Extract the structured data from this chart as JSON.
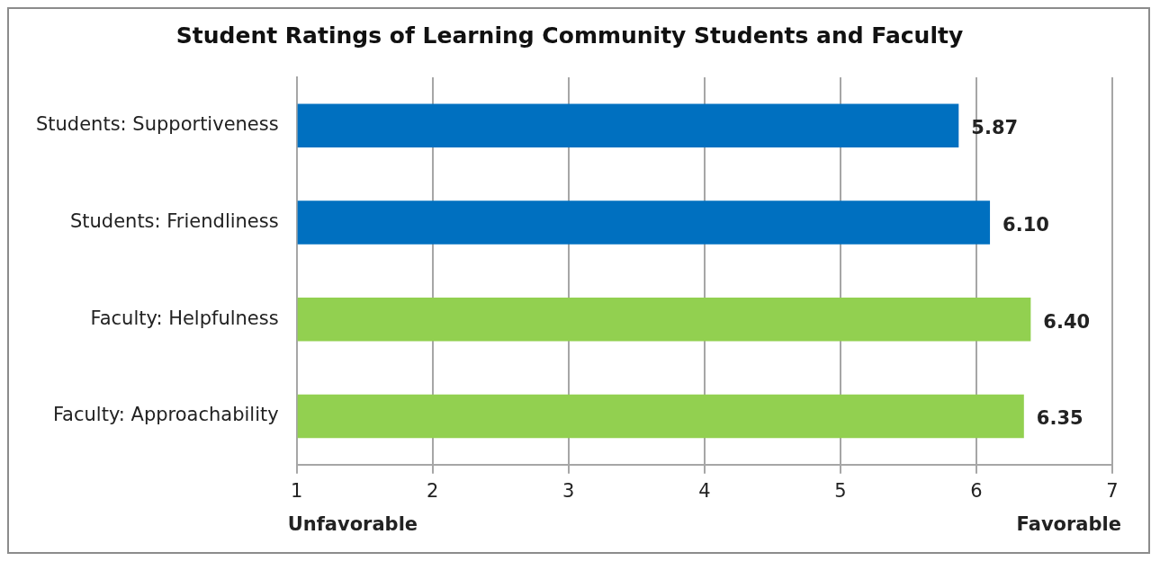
{
  "chart_data": {
    "type": "bar",
    "orientation": "horizontal",
    "title": "Student Ratings of Learning Community Students and Faculty",
    "categories": [
      "Students: Supportiveness",
      "Students: Friendliness",
      "Faculty: Helpfulness",
      "Faculty: Approachability"
    ],
    "values": [
      5.87,
      6.1,
      6.4,
      6.35
    ],
    "colors": [
      "#0070c0",
      "#0070c0",
      "#92d050",
      "#92d050"
    ],
    "value_labels": [
      "5.87",
      "6.10",
      "6.40",
      "6.35"
    ],
    "xlim": [
      1,
      7
    ],
    "xticks": [
      1,
      2,
      3,
      4,
      5,
      6,
      7
    ],
    "grid": "x",
    "legend": false,
    "annotations": [
      "Unfavorable",
      "Favorable"
    ]
  }
}
